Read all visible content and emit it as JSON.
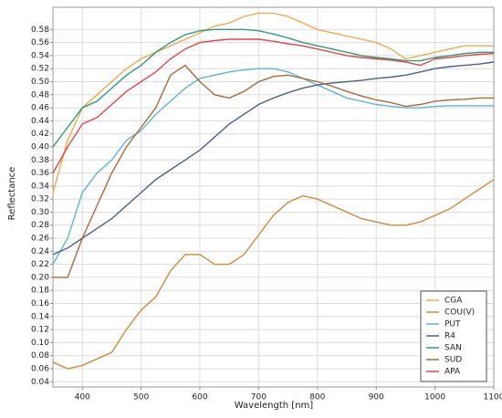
{
  "chart_data": {
    "type": "line",
    "xlabel": "Wavelength [nm]",
    "ylabel": "Reflectance",
    "x": [
      350,
      375,
      400,
      425,
      450,
      475,
      500,
      525,
      550,
      575,
      600,
      625,
      650,
      675,
      700,
      725,
      750,
      775,
      800,
      825,
      850,
      875,
      900,
      925,
      950,
      975,
      1000,
      1025,
      1050,
      1075,
      1100
    ],
    "series": [
      {
        "name": "CGA",
        "color": "#f5a84e",
        "values": [
          0.33,
          0.41,
          0.46,
          0.48,
          0.5,
          0.52,
          0.535,
          0.545,
          0.555,
          0.565,
          0.575,
          0.585,
          0.59,
          0.6,
          0.605,
          0.605,
          0.6,
          0.59,
          0.58,
          0.575,
          0.57,
          0.565,
          0.56,
          0.55,
          0.535,
          0.54,
          0.545,
          0.55,
          0.555,
          0.555,
          0.555
        ]
      },
      {
        "name": "COU(V)",
        "color": "#c98d3c",
        "values": [
          0.07,
          0.06,
          0.065,
          0.075,
          0.085,
          0.12,
          0.15,
          0.17,
          0.21,
          0.235,
          0.235,
          0.22,
          0.22,
          0.235,
          0.265,
          0.295,
          0.315,
          0.325,
          0.32,
          0.31,
          0.3,
          0.29,
          0.285,
          0.28,
          0.28,
          0.285,
          0.295,
          0.305,
          0.32,
          0.335,
          0.35
        ]
      },
      {
        "name": "PUT",
        "color": "#5fb6d4",
        "values": [
          0.22,
          0.26,
          0.33,
          0.36,
          0.38,
          0.41,
          0.425,
          0.45,
          0.47,
          0.49,
          0.505,
          0.51,
          0.515,
          0.518,
          0.52,
          0.52,
          0.515,
          0.505,
          0.495,
          0.485,
          0.475,
          0.47,
          0.465,
          0.462,
          0.46,
          0.46,
          0.462,
          0.463,
          0.463,
          0.463,
          0.463
        ]
      },
      {
        "name": "R4",
        "color": "#4c5f8e",
        "values": [
          0.235,
          0.245,
          0.26,
          0.275,
          0.29,
          0.31,
          0.33,
          0.35,
          0.365,
          0.38,
          0.395,
          0.415,
          0.435,
          0.45,
          0.465,
          0.475,
          0.483,
          0.49,
          0.495,
          0.498,
          0.5,
          0.502,
          0.505,
          0.507,
          0.51,
          0.515,
          0.52,
          0.523,
          0.525,
          0.527,
          0.53
        ]
      },
      {
        "name": "SAN",
        "color": "#2c9c7c",
        "values": [
          0.4,
          0.43,
          0.46,
          0.47,
          0.49,
          0.51,
          0.525,
          0.545,
          0.56,
          0.572,
          0.578,
          0.58,
          0.58,
          0.58,
          0.578,
          0.573,
          0.567,
          0.56,
          0.555,
          0.55,
          0.545,
          0.54,
          0.537,
          0.535,
          0.532,
          0.532,
          0.537,
          0.54,
          0.543,
          0.545,
          0.545
        ]
      },
      {
        "name": "SUD",
        "color": "#a86a3a",
        "values": [
          0.2,
          0.2,
          0.26,
          0.31,
          0.36,
          0.4,
          0.43,
          0.46,
          0.51,
          0.525,
          0.5,
          0.48,
          0.475,
          0.485,
          0.5,
          0.508,
          0.51,
          0.505,
          0.5,
          0.493,
          0.485,
          0.478,
          0.472,
          0.468,
          0.462,
          0.465,
          0.47,
          0.472,
          0.473,
          0.475,
          0.475
        ]
      },
      {
        "name": "APA",
        "color": "#e8434a",
        "values": [
          0.36,
          0.4,
          0.435,
          0.445,
          0.465,
          0.485,
          0.5,
          0.515,
          0.535,
          0.55,
          0.56,
          0.563,
          0.565,
          0.565,
          0.565,
          0.562,
          0.558,
          0.555,
          0.55,
          0.545,
          0.54,
          0.537,
          0.535,
          0.533,
          0.53,
          0.525,
          0.535,
          0.537,
          0.54,
          0.542,
          0.543
        ]
      }
    ],
    "xlim": [
      350,
      1100
    ],
    "xticks": [
      400,
      500,
      600,
      700,
      800,
      900,
      1000,
      1100
    ],
    "ylim": [
      0.032,
      0.614
    ],
    "yticks": [
      0.04,
      0.06,
      0.08,
      {
        "value": 0.1,
        "label": "0.10"
      },
      0.12,
      0.14,
      0.16,
      0.18,
      {
        "value": 0.2,
        "label": "0.20"
      },
      0.22,
      0.24,
      0.26,
      0.28,
      {
        "value": 0.3,
        "label": "0.30"
      },
      0.32,
      0.34,
      0.36,
      0.38,
      {
        "value": 0.4,
        "label": "0.40"
      },
      0.42,
      0.44,
      0.46,
      0.48,
      {
        "value": 0.5,
        "label": "0.50"
      },
      0.52,
      0.54,
      0.56,
      0.58
    ],
    "grid": true,
    "legend": "lower right"
  }
}
